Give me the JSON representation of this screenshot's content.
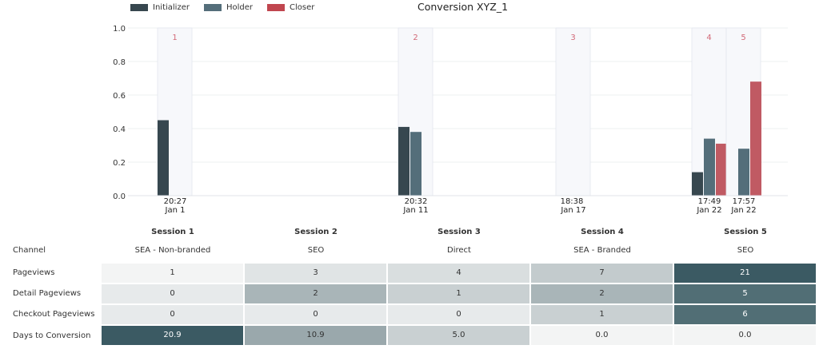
{
  "colors": {
    "initializer": "#37474f",
    "holder": "#546e7a",
    "closer": "#c05a63",
    "session_label": "#d26a78"
  },
  "legend": [
    {
      "label": "Initializer",
      "color": "#37474f"
    },
    {
      "label": "Holder",
      "color": "#546e7a"
    },
    {
      "label": "Closer",
      "color": "#c0464f"
    }
  ],
  "chart_data": {
    "type": "bar",
    "title": "Conversion XYZ_1",
    "ylim": [
      0,
      1.0
    ],
    "y_ticks": [
      "1.0",
      "0.8",
      "0.6",
      "0.4",
      "0.2",
      "0.0"
    ],
    "grid": true,
    "legend_position": "top-left",
    "sessions": [
      {
        "number": "1",
        "time": "20:27",
        "date": "Jan 1",
        "initializer": 0.45,
        "holder": null,
        "closer": null
      },
      {
        "number": "2",
        "time": "20:32",
        "date": "Jan 11",
        "initializer": 0.41,
        "holder": 0.38,
        "closer": null
      },
      {
        "number": "3",
        "time": "18:38",
        "date": "Jan 17",
        "initializer": null,
        "holder": null,
        "closer": null
      },
      {
        "number": "4",
        "time": "17:49",
        "date": "Jan 22",
        "initializer": 0.14,
        "holder": 0.34,
        "closer": 0.31
      },
      {
        "number": "5",
        "time": "17:57",
        "date": "Jan 22",
        "initializer": null,
        "holder": 0.28,
        "closer": 0.68
      }
    ]
  },
  "table": {
    "sessions": [
      "Session 1",
      "Session 2",
      "Session 3",
      "Session 4",
      "Session 5"
    ],
    "row_labels": [
      "Channel",
      "Pageviews",
      "Detail Pageviews",
      "Checkout Pageviews",
      "Days to Conversion"
    ],
    "channels": [
      "SEA - Non-branded",
      "SEO",
      "Direct",
      "SEA - Branded",
      "SEO"
    ],
    "pageviews": [
      "1",
      "3",
      "4",
      "7",
      "21"
    ],
    "detail_pageviews": [
      "0",
      "2",
      "1",
      "2",
      "5"
    ],
    "checkout_pageviews": [
      "0",
      "0",
      "0",
      "1",
      "6"
    ],
    "days_to_conversion": [
      "20.9",
      "10.9",
      "5.0",
      "0.0",
      "0.0"
    ],
    "cell_colors": {
      "pageviews": [
        "#f3f4f4",
        "#e0e4e5",
        "#d9dedf",
        "#c3cbcd",
        "#3b5a63"
      ],
      "detail_pageviews": [
        "#e7eaeb",
        "#a9b5b8",
        "#c9d0d2",
        "#a9b5b8",
        "#516e75"
      ],
      "checkout_pageviews": [
        "#e7eaeb",
        "#e7eaeb",
        "#e7eaeb",
        "#c9d0d2",
        "#516e75"
      ],
      "days_to_conversion": [
        "#3b5a63",
        "#9aa8ac",
        "#c9d0d2",
        "#f3f4f4",
        "#f3f4f4"
      ]
    },
    "light_text_cells": {
      "pageviews": [
        false,
        false,
        false,
        false,
        true
      ],
      "detail_pageviews": [
        false,
        false,
        false,
        false,
        true
      ],
      "checkout_pageviews": [
        false,
        false,
        false,
        false,
        true
      ],
      "days_to_conversion": [
        true,
        false,
        false,
        false,
        false
      ]
    }
  }
}
